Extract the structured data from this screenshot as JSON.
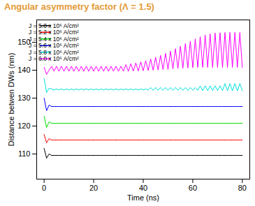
{
  "chart_data": {
    "type": "line",
    "title": "Angular asymmetry factor (Λ = 1.5)",
    "x_label": "Time (ns)",
    "y_label": "Distance betwen DWs (nm)",
    "xlim": [
      -3,
      83
    ],
    "ylim": [
      101,
      158
    ],
    "xticks": [
      0,
      20,
      40,
      60,
      80
    ],
    "yticks": [
      110,
      120,
      130,
      140,
      150
    ],
    "grid": false,
    "legend": "top-left",
    "x": [
      0,
      1,
      2,
      3,
      4,
      5,
      6,
      7,
      8,
      9,
      10,
      11,
      12,
      13,
      14,
      15,
      16,
      17,
      18,
      19,
      20,
      21,
      22,
      23,
      24,
      25,
      26,
      27,
      28,
      29,
      30,
      31,
      32,
      33,
      34,
      35,
      36,
      37,
      38,
      39,
      40,
      41,
      42,
      43,
      44,
      45,
      46,
      47,
      48,
      49,
      50,
      51,
      52,
      53,
      54,
      55,
      56,
      57,
      58,
      59,
      60,
      61,
      62,
      63,
      64,
      65,
      66,
      67,
      68,
      69,
      70,
      71,
      72,
      73,
      74,
      75,
      76,
      77,
      78,
      79,
      80
    ],
    "series": [
      {
        "name": "J = 5.0 x 10⁶ A/cm²",
        "color": "#000000",
        "values": [
          112,
          108.5,
          110,
          109.5,
          109.5,
          109.5,
          109.5,
          109.5,
          109.5,
          109.5,
          109.5,
          109.5,
          109.5,
          109.5,
          109.5,
          109.5,
          109.5,
          109.5,
          109.5,
          109.5,
          109.5,
          109.5,
          109.5,
          109.5,
          109.5,
          109.5,
          109.5,
          109.5,
          109.5,
          109.5,
          109.5,
          109.5,
          109.5,
          109.5,
          109.5,
          109.5,
          109.5,
          109.5,
          109.5,
          109.5,
          109.5,
          109.5,
          109.5,
          109.5,
          109.5,
          109.5,
          109.5,
          109.5,
          109.5,
          109.5,
          109.5,
          109.5,
          109.5,
          109.5,
          109.5,
          109.5,
          109.5,
          109.5,
          109.5,
          109.5,
          109.5,
          109.5,
          109.5,
          109.5,
          109.5,
          109.5,
          109.5,
          109.5,
          109.5,
          109.5,
          109.5,
          109.5,
          109.5,
          109.5,
          109.5,
          109.5,
          109.5,
          109.5,
          109.5,
          109.5,
          109.5
        ]
      },
      {
        "name": "J = 5.2 x 10⁶ A/cm²",
        "color": "#ff0000",
        "values": [
          117,
          114,
          115.5,
          115,
          115,
          115,
          115,
          115,
          115,
          115,
          115,
          115,
          115,
          115,
          115,
          115,
          115,
          115,
          115,
          115,
          115,
          115,
          115,
          115,
          115,
          115,
          115,
          115,
          115,
          115,
          115,
          115,
          115,
          115,
          115,
          115,
          115,
          115,
          115,
          115,
          115,
          115,
          115,
          115,
          115,
          115,
          115,
          115,
          115,
          115,
          115,
          115,
          115,
          115,
          115,
          115,
          115,
          115,
          115,
          115,
          115,
          115,
          115,
          115,
          115,
          115,
          115,
          115,
          115,
          115,
          115,
          115,
          115,
          115,
          115,
          115,
          115,
          115,
          115,
          115,
          115
        ]
      },
      {
        "name": "J = 5.4 x 10⁶ A/cm²",
        "color": "#00dd00",
        "values": [
          123.5,
          119.5,
          121.5,
          121,
          121,
          121,
          121,
          121,
          121,
          121,
          121,
          121,
          121,
          121,
          121,
          121,
          121,
          121,
          121,
          121,
          121,
          121,
          121,
          121,
          121,
          121,
          121,
          121,
          121,
          121,
          121,
          121,
          121,
          121,
          121,
          121,
          121,
          121,
          121,
          121,
          121,
          121,
          121,
          121,
          121,
          121,
          121,
          121,
          121,
          121,
          121,
          121,
          121,
          121,
          121,
          121,
          121,
          121,
          121,
          121,
          121,
          121,
          121,
          121,
          121,
          121,
          121,
          121,
          121,
          121,
          121,
          121,
          121,
          121,
          121,
          121,
          121,
          121,
          121,
          121,
          121
        ]
      },
      {
        "name": "J = 5.6 x 10⁶ A/cm²",
        "color": "#0000ff",
        "values": [
          130,
          125.5,
          127.5,
          127,
          127,
          127,
          127,
          127,
          127,
          127,
          127,
          127,
          127,
          127,
          127,
          127,
          127,
          127,
          127,
          127,
          127,
          127,
          127,
          127,
          127,
          127,
          127,
          127,
          127,
          127,
          127,
          127,
          127,
          127,
          127,
          127,
          127,
          127,
          127,
          127,
          127,
          127,
          127,
          127,
          127,
          127,
          127,
          127,
          127,
          127,
          127,
          127,
          127,
          127,
          127,
          127,
          127,
          127,
          127,
          127,
          127,
          127,
          127,
          127,
          127,
          127,
          127,
          127,
          127,
          127,
          127,
          127,
          127,
          127,
          127,
          127,
          127,
          127,
          127,
          127,
          127
        ]
      },
      {
        "name": "J = 5.8 x 10⁶ A/cm²",
        "color": "#00e0e0",
        "values": [
          137,
          132,
          133.5,
          133.3,
          132.9,
          133.3,
          132.9,
          133.3,
          132.9,
          133.3,
          132.9,
          133.3,
          132.9,
          133.3,
          132.9,
          133.3,
          132.9,
          133.3,
          132.9,
          133.3,
          132.9,
          133.3,
          132.9,
          133.3,
          132.9,
          133.3,
          132.9,
          133.3,
          132.9,
          133.3,
          132.9,
          133.3,
          132.9,
          133.3,
          132.9,
          133.3,
          132.9,
          133.3,
          132.9,
          133.3,
          132.9,
          133.3,
          132.9,
          133.8,
          132.8,
          133.8,
          132.8,
          133.8,
          132.8,
          133.8,
          132.8,
          133.8,
          132.8,
          133.8,
          132.8,
          133.8,
          132.8,
          133.8,
          132.8,
          133.8,
          132.8,
          133.8,
          132.8,
          134.4,
          132.7,
          134.4,
          132.7,
          134.4,
          132.7,
          134.4,
          132.7,
          134.4,
          132.7,
          135.2,
          132.6,
          135.2,
          132.6,
          135.2,
          132.6,
          135.2,
          132.6
        ]
      },
      {
        "name": "J = 6.0 x 10⁶ A/cm²",
        "color": "#ff00ff",
        "values": [
          141,
          138.5,
          140,
          141.4,
          139.6,
          141.4,
          139.6,
          141.4,
          139.6,
          141.4,
          139.6,
          141.4,
          139.6,
          141.4,
          139.6,
          141.4,
          139.6,
          141.4,
          139.6,
          141.4,
          139.6,
          141.4,
          139.6,
          141.4,
          139.6,
          141.4,
          139.6,
          141.4,
          139.6,
          141.4,
          139.6,
          141.4,
          139.6,
          142,
          139.6,
          142.3,
          139.7,
          142.6,
          139.7,
          143,
          139.8,
          143.4,
          139.9,
          144,
          140,
          144.6,
          140.1,
          145.3,
          140.2,
          146,
          140.3,
          146.8,
          140.5,
          147.7,
          140.6,
          148.6,
          140.7,
          149.5,
          140.8,
          150.4,
          140.9,
          151.2,
          141,
          152,
          141,
          152.6,
          141,
          153,
          141,
          153.3,
          141,
          153.4,
          141,
          153.5,
          141,
          153.5,
          141,
          153.5,
          141,
          153.5,
          141
        ]
      }
    ]
  }
}
